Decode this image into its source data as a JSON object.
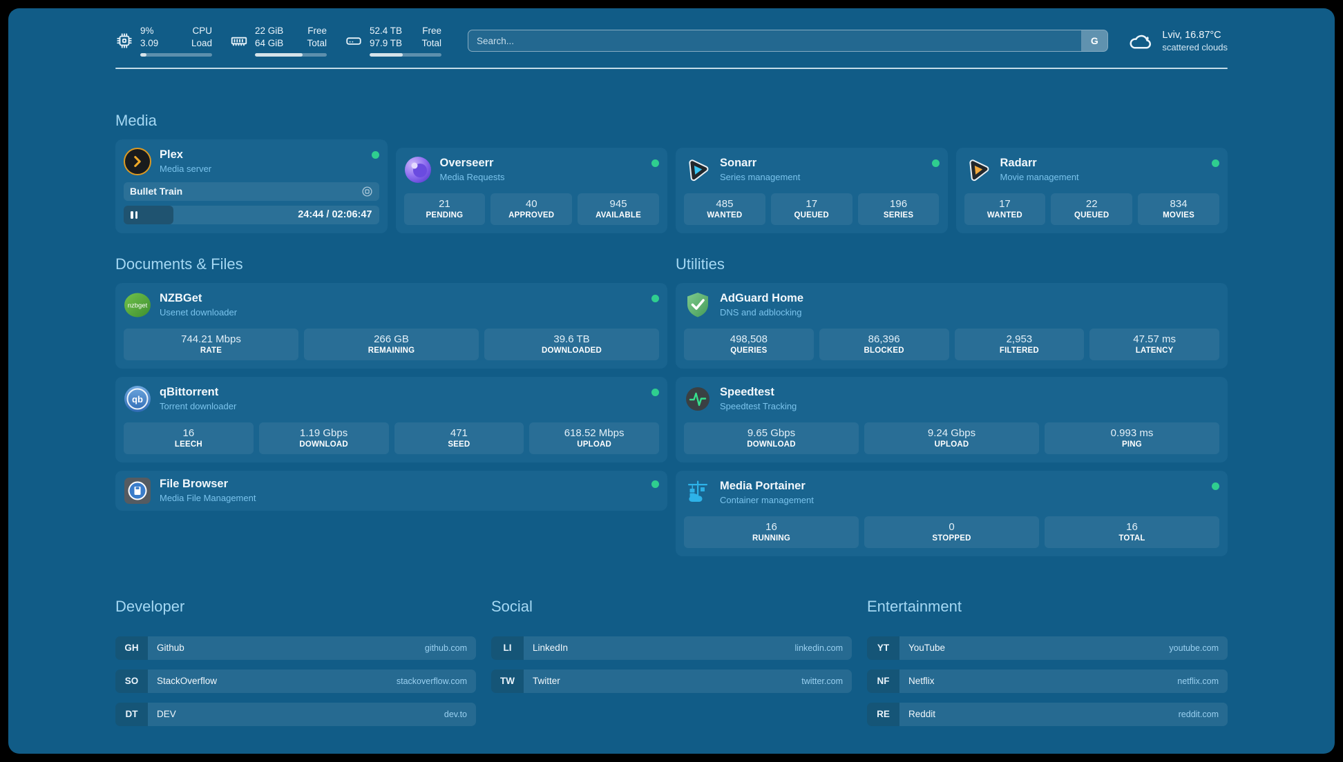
{
  "topbar": {
    "resources": [
      {
        "icon": "cpu-icon",
        "values": [
          "9%",
          "3.09"
        ],
        "labels": [
          "CPU",
          "Load"
        ],
        "progress_pct": 9
      },
      {
        "icon": "ram-icon",
        "values": [
          "22 GiB",
          "64 GiB"
        ],
        "labels": [
          "Free",
          "Total"
        ],
        "progress_pct": 66
      },
      {
        "icon": "disk-icon",
        "values": [
          "52.4 TB",
          "97.9 TB"
        ],
        "labels": [
          "Free",
          "Total"
        ],
        "progress_pct": 46
      }
    ],
    "search": {
      "placeholder": "Search...",
      "engine_button": "G"
    },
    "weather": {
      "location_temp": "Lviv, 16.87°C",
      "condition": "scattered clouds"
    }
  },
  "sections": {
    "media": "Media",
    "documents": "Documents & Files",
    "utilities": "Utilities"
  },
  "services": {
    "plex": {
      "name": "Plex",
      "description": "Media server",
      "now_playing": "Bullet Train",
      "time": "24:44 / 02:06:47",
      "progress_pct": 19.5
    },
    "overseerr": {
      "name": "Overseerr",
      "description": "Media Requests",
      "stats": [
        {
          "value": "21",
          "label": "PENDING"
        },
        {
          "value": "40",
          "label": "APPROVED"
        },
        {
          "value": "945",
          "label": "AVAILABLE"
        }
      ]
    },
    "sonarr": {
      "name": "Sonarr",
      "description": "Series management",
      "stats": [
        {
          "value": "485",
          "label": "WANTED"
        },
        {
          "value": "17",
          "label": "QUEUED"
        },
        {
          "value": "196",
          "label": "SERIES"
        }
      ]
    },
    "radarr": {
      "name": "Radarr",
      "description": "Movie management",
      "stats": [
        {
          "value": "17",
          "label": "WANTED"
        },
        {
          "value": "22",
          "label": "QUEUED"
        },
        {
          "value": "834",
          "label": "MOVIES"
        }
      ]
    },
    "nzbget": {
      "name": "NZBGet",
      "description": "Usenet downloader",
      "stats": [
        {
          "value": "744.21 Mbps",
          "label": "RATE"
        },
        {
          "value": "266 GB",
          "label": "REMAINING"
        },
        {
          "value": "39.6 TB",
          "label": "DOWNLOADED"
        }
      ]
    },
    "qbittorrent": {
      "name": "qBittorrent",
      "description": "Torrent downloader",
      "stats": [
        {
          "value": "16",
          "label": "LEECH"
        },
        {
          "value": "1.19 Gbps",
          "label": "DOWNLOAD"
        },
        {
          "value": "471",
          "label": "SEED"
        },
        {
          "value": "618.52 Mbps",
          "label": "UPLOAD"
        }
      ]
    },
    "filebrowser": {
      "name": "File Browser",
      "description": "Media File Management"
    },
    "adguard": {
      "name": "AdGuard Home",
      "description": "DNS and adblocking",
      "stats": [
        {
          "value": "498,508",
          "label": "QUERIES"
        },
        {
          "value": "86,396",
          "label": "BLOCKED"
        },
        {
          "value": "2,953",
          "label": "FILTERED"
        },
        {
          "value": "47.57 ms",
          "label": "LATENCY"
        }
      ]
    },
    "speedtest": {
      "name": "Speedtest",
      "description": "Speedtest Tracking",
      "stats": [
        {
          "value": "9.65 Gbps",
          "label": "DOWNLOAD"
        },
        {
          "value": "9.24 Gbps",
          "label": "UPLOAD"
        },
        {
          "value": "0.993 ms",
          "label": "PING"
        }
      ]
    },
    "portainer": {
      "name": "Media Portainer",
      "description": "Container management",
      "stats": [
        {
          "value": "16",
          "label": "RUNNING"
        },
        {
          "value": "0",
          "label": "STOPPED"
        },
        {
          "value": "16",
          "label": "TOTAL"
        }
      ]
    }
  },
  "status": {
    "online_color": "#2FCE8F"
  },
  "bookmarks": {
    "developer": {
      "title": "Developer",
      "items": [
        {
          "abbr": "GH",
          "name": "Github",
          "url": "github.com"
        },
        {
          "abbr": "SO",
          "name": "StackOverflow",
          "url": "stackoverflow.com"
        },
        {
          "abbr": "DT",
          "name": "DEV",
          "url": "dev.to"
        }
      ]
    },
    "social": {
      "title": "Social",
      "items": [
        {
          "abbr": "LI",
          "name": "LinkedIn",
          "url": "linkedin.com"
        },
        {
          "abbr": "TW",
          "name": "Twitter",
          "url": "twitter.com"
        }
      ]
    },
    "entertainment": {
      "title": "Entertainment",
      "items": [
        {
          "abbr": "YT",
          "name": "YouTube",
          "url": "youtube.com"
        },
        {
          "abbr": "NF",
          "name": "Netflix",
          "url": "netflix.com"
        },
        {
          "abbr": "RE",
          "name": "Reddit",
          "url": "reddit.com"
        }
      ]
    }
  }
}
